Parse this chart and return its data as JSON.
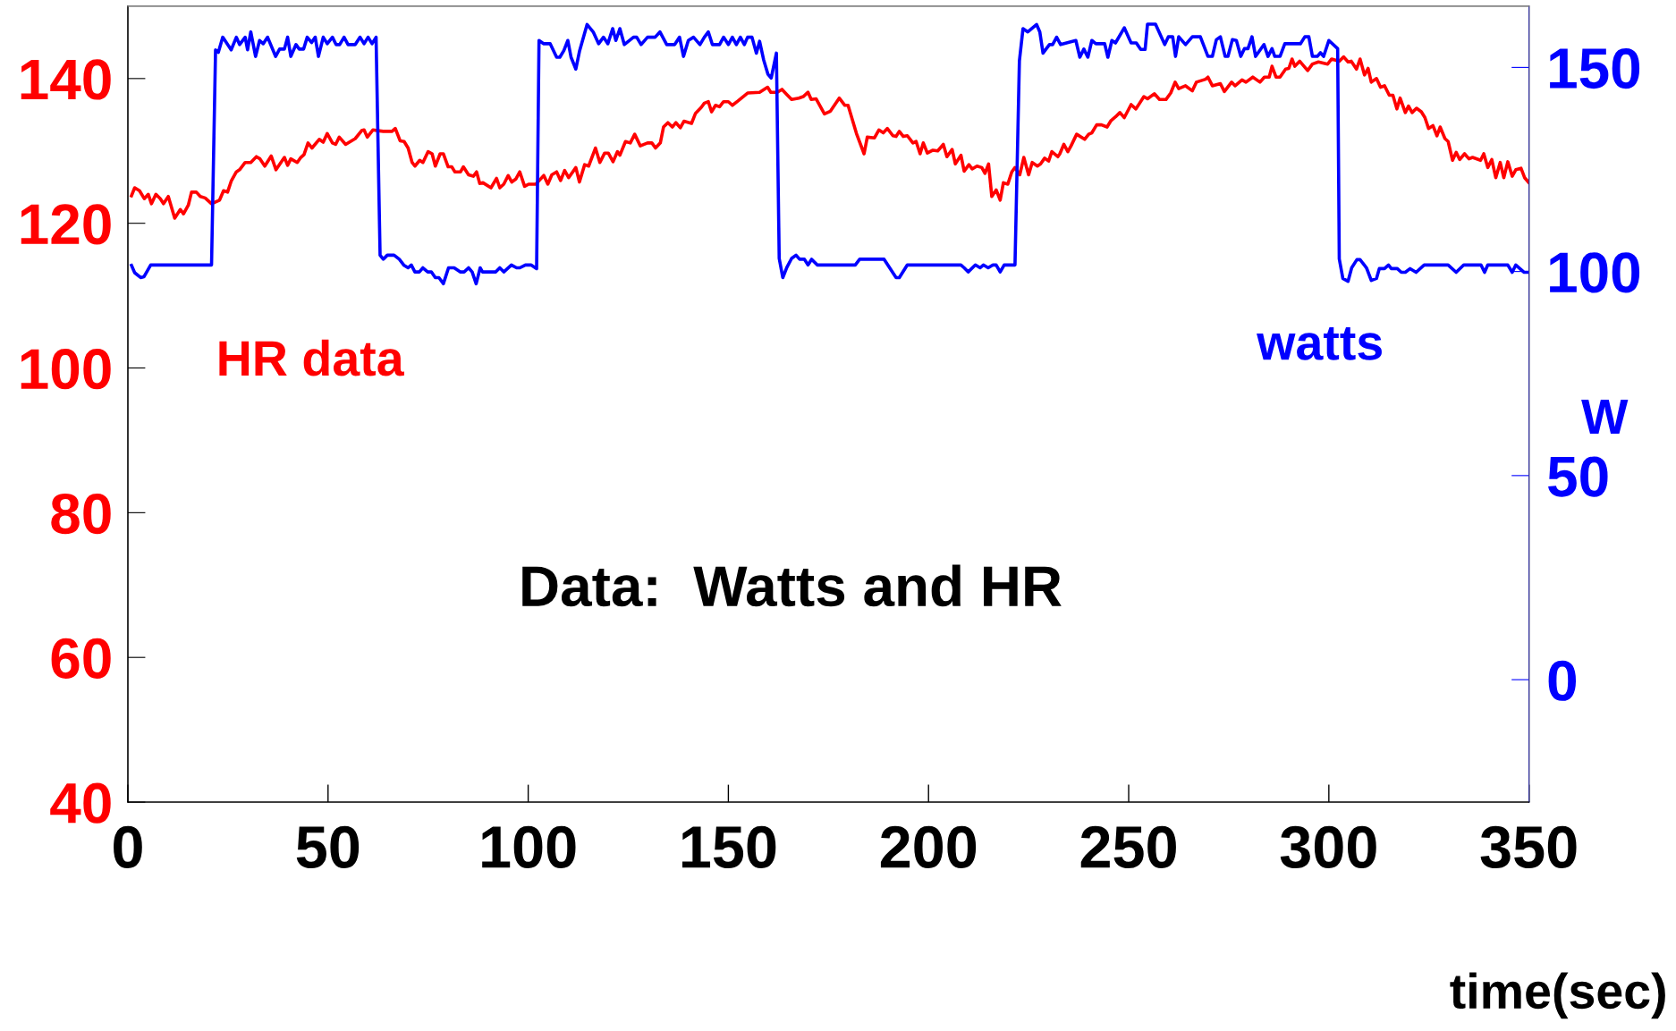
{
  "chart_data": {
    "type": "line",
    "xlabel": "time(sec)",
    "y2label": "W",
    "annotations": [
      "Data:  Watts and HR"
    ],
    "xlim": [
      0,
      350
    ],
    "xticks": [
      0,
      50,
      100,
      150,
      200,
      250,
      300,
      350
    ],
    "ylim": [
      40,
      150
    ],
    "yticks": [
      40,
      60,
      80,
      100,
      120,
      140
    ],
    "y2lim": [
      -30,
      165
    ],
    "y2ticks": [
      0,
      50,
      100,
      150
    ],
    "grid": false,
    "legend": false,
    "marker": "none",
    "line_style": "solid",
    "series": [
      {
        "name": "HR data",
        "color": "#ff0000",
        "axis": "y",
        "x": [
          0.9,
          1.7,
          2.9,
          4.1,
          5.1,
          5.9,
          7.0,
          8.1,
          8.9,
          10.1,
          11.7,
          13.1,
          13.9,
          15.1,
          15.9,
          17.1,
          18.1,
          19.3,
          20.9,
          22.9,
          23.9,
          24.9,
          25.8,
          27.1,
          27.9,
          29.3,
          30.7,
          32.1,
          33.0,
          34.2,
          35.8,
          37.0,
          39.1,
          39.9,
          40.7,
          42.3,
          43.2,
          44.0,
          45.0,
          46.0,
          47.8,
          48.8,
          49.8,
          51.1,
          51.9,
          52.8,
          54.4,
          56.8,
          58.4,
          59.0,
          59.8,
          61.2,
          62.4,
          63.8,
          66.0,
          66.8,
          68.0,
          69.0,
          70.0,
          71.0,
          71.7,
          72.9,
          73.7,
          75.0,
          76.0,
          76.8,
          78.0,
          78.8,
          80.0,
          80.9,
          81.7,
          83.1,
          83.8,
          85.1,
          86.3,
          87.1,
          87.9,
          88.7,
          90.7,
          92.1,
          92.9,
          93.9,
          95.0,
          95.9,
          96.9,
          97.9,
          99.1,
          100.1,
          101.9,
          102.9,
          103.9,
          104.9,
          105.9,
          107.1,
          108.1,
          109.1,
          110.1,
          111.9,
          112.8,
          114.1,
          115.1,
          116.8,
          117.9,
          119.1,
          120.0,
          121.2,
          122.3,
          122.9,
          124.3,
          125.5,
          126.6,
          128.0,
          129.8,
          130.9,
          131.8,
          133.0,
          133.8,
          134.9,
          136.0,
          136.9,
          138.0,
          138.9,
          140.8,
          141.8,
          143.2,
          144.0,
          145.0,
          145.8,
          146.8,
          147.8,
          148.8,
          150.0,
          151.0,
          152.4,
          154.8,
          157.8,
          159.8,
          160.6,
          162.2,
          163.4,
          164.6,
          165.8,
          167.6,
          168.7,
          169.9,
          170.7,
          171.9,
          174.0,
          175.5,
          177.7,
          179.1,
          179.9,
          182.0,
          183.9,
          184.7,
          186.5,
          187.6,
          188.7,
          189.7,
          191.1,
          191.9,
          192.7,
          193.7,
          194.7,
          196.1,
          196.9,
          197.9,
          198.7,
          199.7,
          201.1,
          202.3,
          203.7,
          204.6,
          205.9,
          206.7,
          208.1,
          208.9,
          210.1,
          210.9,
          212.1,
          213.3,
          214.1,
          215.0,
          215.8,
          216.9,
          217.9,
          218.7,
          219.8,
          220.8,
          221.6,
          222.8,
          223.8,
          225.0,
          225.9,
          227.2,
          228.0,
          229.0,
          230.0,
          230.8,
          232.3,
          232.8,
          233.8,
          234.8,
          235.6,
          237.0,
          239.0,
          240.0,
          240.8,
          242.0,
          243.2,
          244.6,
          245.6,
          246.7,
          247.8,
          248.9,
          250.6,
          251.8,
          253.8,
          254.7,
          256.4,
          257.7,
          259.3,
          260.5,
          261.6,
          262.5,
          264.2,
          265.9,
          266.9,
          269.2,
          269.8,
          270.9,
          272.9,
          273.9,
          275.7,
          276.6,
          278.3,
          279.3,
          281.0,
          282.8,
          283.9,
          285.1,
          285.8,
          286.8,
          287.8,
          289.2,
          290.0,
          290.8,
          291.5,
          292.7,
          294.7,
          295.9,
          297.4,
          299.7,
          300.7,
          302.6,
          303.7,
          304.8,
          305.6,
          306.9,
          307.8,
          308.9,
          309.8,
          310.6,
          311.9,
          312.9,
          313.9,
          315.1,
          316.0,
          317.0,
          317.8,
          319.1,
          319.9,
          320.8,
          321.9,
          323.1,
          324.0,
          324.9,
          326.0,
          327.0,
          327.8,
          329.0,
          329.8,
          330.9,
          331.8,
          332.7,
          333.9,
          335.0,
          335.9,
          337.9,
          338.7,
          339.7,
          340.7,
          341.7,
          342.8,
          343.7,
          344.7,
          345.8,
          346.7,
          348.0,
          348.9,
          350.0
        ],
        "values": [
          123.8,
          124.9,
          124.5,
          123.4,
          124.0,
          122.7,
          124.0,
          123.4,
          122.7,
          123.7,
          120.7,
          121.9,
          121.3,
          122.5,
          124.3,
          124.3,
          123.7,
          123.5,
          122.7,
          123.2,
          124.5,
          124.3,
          125.8,
          127.1,
          127.4,
          128.4,
          128.4,
          129.2,
          128.9,
          127.9,
          129.3,
          127.4,
          129.1,
          128.0,
          128.9,
          128.4,
          129.1,
          129.5,
          131.1,
          130.4,
          131.6,
          131.2,
          132.4,
          131.1,
          130.9,
          131.9,
          130.9,
          131.7,
          132.8,
          132.9,
          131.9,
          132.9,
          132.8,
          132.7,
          132.7,
          133.1,
          131.4,
          131.3,
          130.4,
          128.4,
          127.9,
          128.7,
          128.4,
          129.9,
          129.6,
          127.9,
          129.6,
          129.6,
          127.8,
          127.8,
          127.1,
          127.1,
          127.8,
          126.7,
          126.5,
          127.1,
          125.5,
          125.6,
          124.9,
          126.2,
          124.9,
          125.4,
          126.6,
          125.7,
          126.1,
          127.1,
          125.1,
          125.4,
          125.4,
          126.0,
          126.6,
          125.4,
          126.7,
          127.1,
          125.9,
          127.3,
          126.3,
          127.7,
          125.7,
          128.1,
          127.9,
          130.4,
          128.4,
          129.7,
          129.7,
          128.5,
          129.9,
          129.4,
          131.3,
          131.1,
          132.3,
          130.7,
          131.1,
          131.1,
          130.4,
          131.1,
          133.3,
          133.9,
          133.3,
          133.9,
          133.2,
          134.1,
          133.8,
          135.2,
          136.0,
          136.6,
          136.8,
          135.4,
          136.3,
          136.1,
          136.8,
          136.8,
          136.3,
          136.9,
          138.0,
          138.1,
          138.8,
          138.1,
          138.1,
          138.5,
          137.8,
          137.1,
          137.3,
          137.5,
          138.1,
          137.1,
          137.2,
          135.1,
          135.5,
          137.3,
          136.3,
          136.3,
          132.4,
          129.6,
          131.9,
          131.8,
          132.9,
          132.5,
          133.1,
          132.1,
          132.0,
          132.7,
          132.0,
          132.1,
          131.1,
          131.3,
          129.6,
          131.1,
          129.7,
          130.1,
          130.0,
          130.9,
          129.2,
          130.2,
          128.2,
          129.4,
          127.2,
          128.1,
          127.5,
          127.9,
          127.7,
          126.9,
          128.2,
          123.7,
          124.6,
          123.2,
          125.6,
          125.4,
          127.1,
          127.7,
          126.7,
          129.1,
          126.7,
          128.4,
          127.9,
          128.2,
          129.0,
          128.6,
          129.9,
          129.2,
          129.6,
          130.9,
          129.9,
          130.7,
          132.3,
          131.6,
          132.3,
          132.5,
          133.6,
          133.6,
          133.3,
          134.2,
          134.7,
          135.3,
          134.6,
          136.4,
          135.8,
          137.5,
          137.2,
          137.9,
          137.1,
          137.1,
          138.0,
          139.5,
          138.6,
          139.0,
          138.3,
          139.5,
          139.9,
          140.2,
          139.0,
          139.3,
          138.2,
          139.5,
          139.0,
          139.8,
          139.5,
          140.2,
          139.5,
          140.2,
          140.2,
          141.7,
          140.2,
          140.2,
          141.3,
          141.4,
          142.7,
          141.7,
          142.4,
          141.1,
          142.0,
          142.3,
          142.0,
          142.7,
          142.4,
          143.0,
          142.3,
          142.4,
          141.3,
          142.7,
          140.5,
          141.4,
          139.5,
          140.0,
          138.8,
          139.0,
          137.7,
          137.7,
          135.8,
          137.3,
          135.3,
          136.2,
          135.3,
          135.9,
          135.4,
          134.6,
          133.1,
          133.5,
          132.1,
          133.3,
          131.7,
          131.3,
          128.7,
          129.8,
          128.8,
          129.6,
          128.9,
          129.1,
          128.7,
          129.6,
          127.7,
          128.8,
          126.3,
          128.4,
          126.3,
          128.5,
          126.5,
          127.4,
          127.6,
          126.3,
          125.6
        ]
      },
      {
        "name": "watts",
        "color": "#0000ff",
        "axis": "y2",
        "x": [
          0.9,
          1.7,
          3.2,
          4.0,
          5.7,
          20.9,
          21.9,
          22.6,
          23.7,
          25.8,
          27.1,
          27.9,
          29.3,
          29.9,
          30.7,
          31.9,
          32.9,
          33.8,
          34.9,
          36.9,
          37.9,
          39.1,
          39.9,
          40.7,
          42.0,
          42.8,
          43.9,
          44.8,
          45.9,
          46.8,
          47.6,
          48.8,
          49.8,
          51.1,
          52.0,
          52.9,
          54.0,
          55.0,
          56.8,
          58.0,
          59.0,
          60.0,
          61.0,
          62.0,
          63.0,
          63.8,
          64.8,
          66.5,
          67.8,
          69.0,
          70.0,
          70.8,
          71.7,
          72.8,
          73.7,
          74.9,
          75.8,
          76.8,
          77.7,
          78.8,
          80.1,
          81.5,
          83.0,
          84.0,
          85.1,
          86.0,
          87.0,
          88.0,
          88.6,
          91.9,
          92.9,
          93.9,
          95.8,
          97.1,
          97.9,
          99.3,
          100.7,
          102.1,
          102.7,
          103.9,
          105.5,
          107.1,
          107.9,
          108.9,
          109.9,
          110.7,
          111.9,
          112.8,
          114.7,
          116.3,
          117.6,
          118.8,
          119.9,
          121.1,
          121.9,
          122.9,
          124.0,
          126.3,
          127.1,
          128.2,
          129.8,
          131.7,
          132.9,
          134.6,
          136.6,
          137.8,
          138.8,
          140.0,
          141.3,
          142.9,
          144.0,
          145.0,
          146.0,
          147.8,
          148.8,
          150.0,
          151.0,
          152.0,
          153.0,
          154.0,
          154.8,
          155.9,
          157.0,
          157.8,
          158.8,
          159.9,
          160.7,
          162.0,
          162.7,
          163.6,
          164.6,
          165.8,
          166.9,
          167.8,
          169.0,
          169.9,
          170.8,
          172.2,
          181.7,
          182.8,
          188.9,
          191.9,
          192.7,
          194.7,
          208.1,
          208.9,
          209.9,
          211.7,
          212.9,
          213.7,
          214.9,
          216.1,
          216.9,
          217.9,
          218.9,
          221.6,
          222.7,
          223.6,
          224.8,
          226.0,
          227.0,
          227.8,
          228.6,
          230.2,
          231.0,
          232.0,
          233.0,
          236.8,
          237.8,
          238.8,
          239.8,
          240.8,
          241.8,
          244.0,
          244.8,
          245.8,
          246.7,
          248.9,
          250.6,
          251.9,
          253.0,
          254.1,
          254.7,
          256.7,
          259.0,
          259.9,
          261.0,
          261.7,
          262.5,
          264.2,
          265.9,
          267.9,
          269.8,
          270.9,
          271.9,
          272.9,
          274.1,
          274.8,
          275.9,
          276.9,
          278.0,
          278.9,
          279.8,
          280.8,
          281.7,
          283.8,
          284.8,
          285.8,
          286.5,
          287.8,
          289.0,
          292.9,
          294.0,
          295.0,
          295.9,
          297.1,
          297.9,
          298.7,
          300.0,
          302.2,
          302.6,
          303.5,
          304.8,
          305.7,
          307.0,
          307.8,
          309.4,
          310.6,
          311.9,
          312.6,
          313.9,
          314.9,
          315.6,
          317.1,
          318.1,
          319.1,
          320.3,
          321.8,
          323.8,
          329.8,
          331.8,
          333.7,
          338.0,
          338.9,
          339.7,
          344.7,
          345.8,
          346.7,
          348.8,
          350.0
        ],
        "values": [
          101.5,
          99.7,
          98.5,
          98.7,
          101.6,
          101.6,
          154.3,
          153.7,
          157.4,
          154.3,
          157.4,
          155.6,
          157.4,
          154.3,
          158.7,
          152.7,
          156.6,
          155.8,
          157.4,
          152.7,
          154.5,
          154.5,
          157.4,
          152.7,
          155.6,
          154.5,
          154.5,
          157.4,
          156.1,
          157.4,
          152.7,
          157.4,
          155.8,
          157.4,
          155.6,
          155.6,
          157.4,
          155.6,
          155.6,
          157.4,
          155.8,
          157.4,
          155.8,
          157.4,
          104.0,
          103.0,
          104.0,
          104.0,
          103.0,
          101.5,
          100.9,
          101.6,
          99.9,
          99.9,
          100.9,
          99.9,
          99.9,
          98.5,
          98.5,
          97.0,
          100.9,
          100.9,
          99.9,
          99.9,
          100.9,
          99.9,
          97.0,
          100.9,
          99.9,
          99.9,
          100.9,
          99.9,
          101.6,
          100.9,
          100.9,
          101.6,
          101.6,
          100.7,
          156.6,
          155.8,
          155.8,
          152.5,
          152.5,
          154.1,
          156.6,
          152.5,
          149.6,
          153.9,
          160.5,
          158.6,
          155.8,
          157.4,
          155.8,
          159.5,
          156.6,
          159.5,
          155.6,
          157.4,
          157.4,
          155.6,
          157.4,
          157.4,
          158.7,
          155.6,
          155.6,
          157.4,
          152.7,
          156.6,
          157.4,
          155.6,
          157.4,
          158.7,
          155.6,
          155.6,
          157.4,
          155.6,
          157.4,
          155.6,
          157.4,
          155.6,
          157.4,
          157.4,
          153.5,
          156.4,
          151.9,
          148.3,
          147.4,
          153.5,
          103.2,
          98.5,
          101.0,
          103.2,
          104.0,
          103.0,
          103.0,
          101.6,
          103.0,
          101.6,
          101.6,
          103.0,
          103.0,
          98.5,
          98.5,
          101.6,
          101.6,
          100.9,
          99.9,
          101.6,
          100.9,
          101.6,
          100.9,
          101.6,
          101.6,
          99.9,
          101.6,
          101.6,
          151.6,
          159.5,
          158.7,
          159.7,
          160.5,
          158.7,
          153.5,
          155.6,
          155.6,
          157.4,
          155.6,
          156.6,
          152.5,
          154.5,
          152.5,
          156.6,
          155.8,
          155.8,
          152.5,
          156.6,
          156.0,
          159.7,
          156.0,
          156.0,
          154.4,
          154.4,
          160.6,
          160.6,
          155.6,
          157.5,
          157.5,
          152.7,
          157.5,
          155.6,
          157.5,
          157.5,
          152.7,
          152.7,
          156.8,
          157.5,
          152.7,
          152.7,
          156.8,
          156.6,
          152.7,
          154.6,
          154.6,
          157.5,
          152.7,
          155.6,
          152.7,
          154.6,
          152.7,
          152.7,
          155.8,
          155.8,
          157.5,
          157.5,
          152.7,
          152.7,
          153.6,
          152.7,
          156.6,
          154.6,
          103.1,
          98.3,
          97.6,
          100.9,
          102.9,
          102.9,
          100.9,
          97.8,
          98.3,
          100.7,
          100.7,
          101.6,
          100.7,
          100.7,
          99.8,
          99.8,
          100.7,
          99.8,
          101.6,
          101.6,
          99.8,
          101.6,
          101.6,
          99.8,
          101.6,
          101.6,
          99.8,
          101.6,
          99.8,
          99.8
        ]
      }
    ]
  }
}
